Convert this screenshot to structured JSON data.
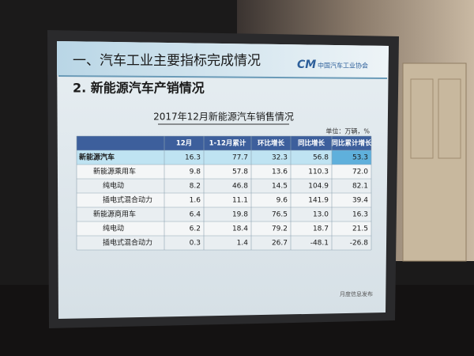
{
  "slide": {
    "section_title": "一、汽车工业主要指标完成情况",
    "logo_text": "中国汽车工业协会",
    "subtitle": "2. 新能源汽车产销情况",
    "table": {
      "title": "2017年12月新能源汽车销售情况",
      "unit": "单位：万辆，%",
      "headers": [
        "12月",
        "1-12月累计",
        "环比增长",
        "同比增长",
        "同比累计增长"
      ],
      "rows": [
        [
          "新能源汽车",
          "16.3",
          "77.7",
          "32.3",
          "56.8",
          "53.3"
        ],
        [
          "新能源乘用车",
          "9.8",
          "57.8",
          "13.6",
          "110.3",
          "72.0"
        ],
        [
          "纯电动",
          "8.2",
          "46.8",
          "14.5",
          "104.9",
          "82.1"
        ],
        [
          "插电式混合动力",
          "1.6",
          "11.1",
          "9.6",
          "141.9",
          "39.4"
        ],
        [
          "新能源商用车",
          "6.4",
          "19.8",
          "76.5",
          "13.0",
          "16.3"
        ],
        [
          "纯电动",
          "6.2",
          "18.4",
          "79.2",
          "18.7",
          "21.5"
        ],
        [
          "插电式混合动力",
          "0.3",
          "1.4",
          "26.7",
          "-48.1",
          "-26.8"
        ]
      ]
    },
    "footer": "月度信息发布"
  }
}
